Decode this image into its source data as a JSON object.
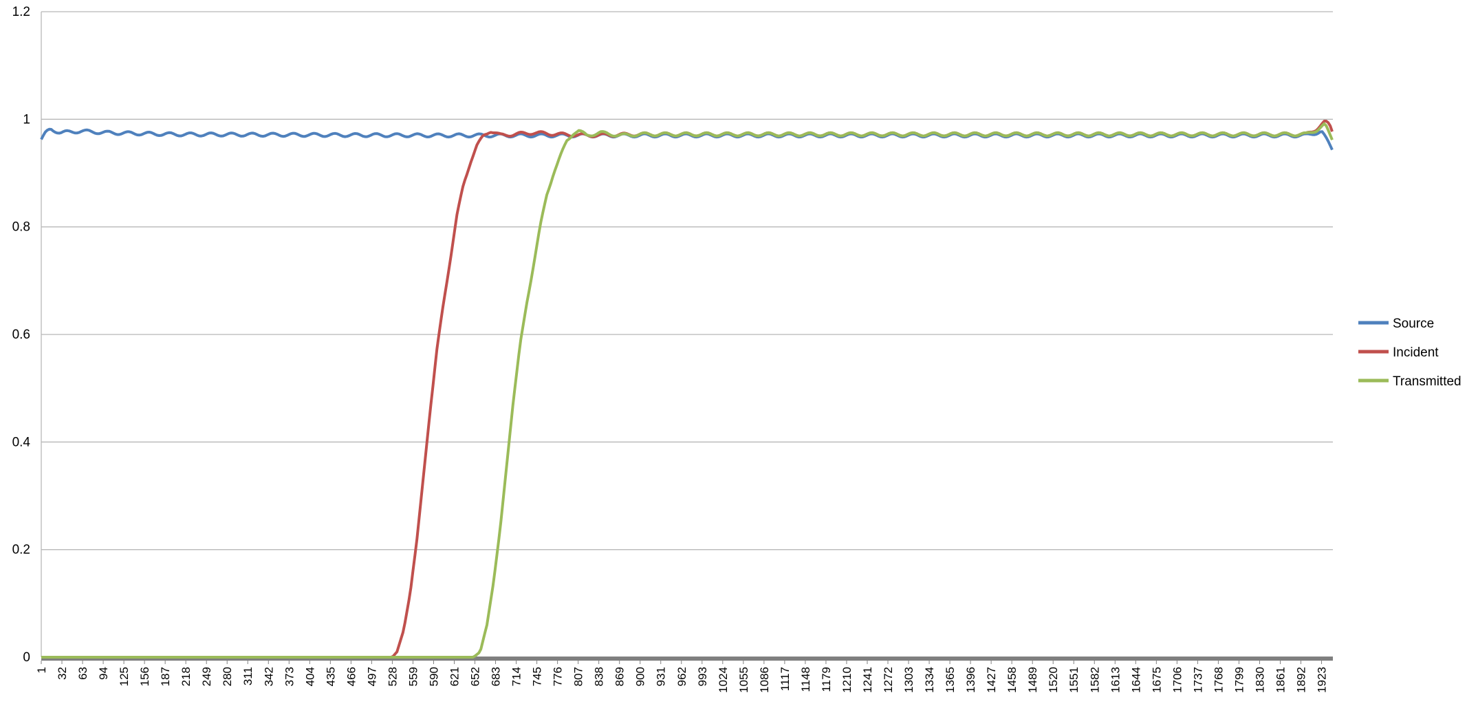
{
  "chart_data": {
    "type": "line",
    "title": "",
    "xlabel": "",
    "ylabel": "",
    "ylim": [
      0,
      1.2
    ],
    "y_ticks": [
      "0",
      "0.2",
      "0.4",
      "0.6",
      "0.8",
      "1",
      "1.2"
    ],
    "x_range": [
      1,
      1940
    ],
    "x_ticks": [
      "1",
      "32",
      "63",
      "94",
      "125",
      "156",
      "187",
      "218",
      "249",
      "280",
      "311",
      "342",
      "373",
      "404",
      "435",
      "466",
      "497",
      "528",
      "559",
      "590",
      "621",
      "652",
      "683",
      "714",
      "745",
      "776",
      "807",
      "838",
      "869",
      "900",
      "931",
      "962",
      "993",
      "1024",
      "1055",
      "1086",
      "1117",
      "1148",
      "1179",
      "1210",
      "1241",
      "1272",
      "1303",
      "1334",
      "1365",
      "1396",
      "1427",
      "1458",
      "1489",
      "1520",
      "1551",
      "1582",
      "1613",
      "1644",
      "1675",
      "1706",
      "1737",
      "1768",
      "1799",
      "1830",
      "1861",
      "1892",
      "1923"
    ],
    "grid": "horizontal",
    "legend_position": "right",
    "series": [
      {
        "name": "Source",
        "color": "#4f81bd",
        "points": [
          [
            1,
            0.962
          ],
          [
            8,
            0.975
          ],
          [
            15,
            0.982
          ],
          [
            30,
            0.975
          ],
          [
            60,
            0.978
          ],
          [
            100,
            0.975
          ],
          [
            200,
            0.972
          ],
          [
            400,
            0.971
          ],
          [
            600,
            0.97
          ],
          [
            800,
            0.97
          ],
          [
            1000,
            0.97
          ],
          [
            1500,
            0.97
          ],
          [
            1900,
            0.97
          ],
          [
            1915,
            0.975
          ],
          [
            1923,
            0.978
          ],
          [
            1940,
            0.942
          ]
        ],
        "ripple_amplitude": 0.003,
        "ripple_period": 31
      },
      {
        "name": "Incident",
        "color": "#c0504d",
        "points": [
          [
            1,
            0
          ],
          [
            528,
            0
          ],
          [
            535,
            0.01
          ],
          [
            545,
            0.05
          ],
          [
            555,
            0.12
          ],
          [
            565,
            0.22
          ],
          [
            575,
            0.34
          ],
          [
            585,
            0.46
          ],
          [
            595,
            0.57
          ],
          [
            605,
            0.66
          ],
          [
            615,
            0.74
          ],
          [
            625,
            0.82
          ],
          [
            635,
            0.88
          ],
          [
            645,
            0.92
          ],
          [
            655,
            0.95
          ],
          [
            665,
            0.97
          ],
          [
            675,
            0.979
          ],
          [
            690,
            0.97
          ],
          [
            710,
            0.972
          ],
          [
            740,
            0.975
          ],
          [
            780,
            0.972
          ],
          [
            820,
            0.97
          ],
          [
            900,
            0.972
          ],
          [
            1500,
            0.972
          ],
          [
            1900,
            0.972
          ],
          [
            1915,
            0.982
          ],
          [
            1928,
            0.995
          ],
          [
            1935,
            0.99
          ],
          [
            1940,
            0.975
          ]
        ],
        "ripple_amplitude": 0.003,
        "ripple_period": 31
      },
      {
        "name": "Transmitted",
        "color": "#9bbb59",
        "points": [
          [
            1,
            0
          ],
          [
            650,
            0
          ],
          [
            660,
            0.01
          ],
          [
            670,
            0.06
          ],
          [
            680,
            0.14
          ],
          [
            690,
            0.24
          ],
          [
            700,
            0.36
          ],
          [
            710,
            0.48
          ],
          [
            720,
            0.58
          ],
          [
            730,
            0.66
          ],
          [
            740,
            0.73
          ],
          [
            750,
            0.8
          ],
          [
            760,
            0.86
          ],
          [
            770,
            0.9
          ],
          [
            780,
            0.93
          ],
          [
            790,
            0.96
          ],
          [
            800,
            0.975
          ],
          [
            808,
            0.978
          ],
          [
            820,
            0.97
          ],
          [
            840,
            0.975
          ],
          [
            870,
            0.97
          ],
          [
            900,
            0.972
          ],
          [
            1500,
            0.972
          ],
          [
            1900,
            0.972
          ],
          [
            1915,
            0.98
          ],
          [
            1928,
            0.99
          ],
          [
            1940,
            0.96
          ]
        ],
        "ripple_amplitude": 0.003,
        "ripple_period": 31
      }
    ]
  }
}
